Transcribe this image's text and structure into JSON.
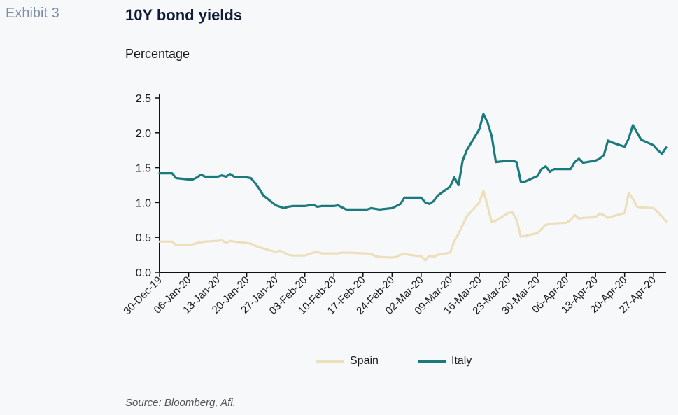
{
  "exhibit_label": "Exhibit 3",
  "colors": {
    "spain": "#ecdfbb",
    "italy": "#1b7a7e",
    "axis": "#111111"
  },
  "chart_data": {
    "type": "line",
    "title": "10Y bond yields",
    "ylabel": "Percentage",
    "source": "Source: Bloomberg, Afi.",
    "ylim": [
      0,
      2.5
    ],
    "yticks": [
      "0.0",
      "0.5",
      "1.0",
      "1.5",
      "2.0",
      "2.5"
    ],
    "xlim": [
      "2019-12-30",
      "2020-04-30"
    ],
    "xticks": [
      "30-Dec-19",
      "06-Jan-20",
      "13-Jan-20",
      "20-Jan-20",
      "27-Jan-20",
      "03-Feb-20",
      "10-Feb-20",
      "17-Feb-20",
      "24-Feb-20",
      "02-Mar-20",
      "09-Mar-20",
      "16-Mar-20",
      "23-Mar-20",
      "30-Mar-20",
      "06-Apr-20",
      "13-Apr-20",
      "20-Apr-20",
      "27-Apr-20"
    ],
    "grid": false,
    "legend_position": "bottom",
    "x": [
      "2019-12-30",
      "2020-01-01",
      "2020-01-02",
      "2020-01-03",
      "2020-01-06",
      "2020-01-07",
      "2020-01-08",
      "2020-01-09",
      "2020-01-10",
      "2020-01-13",
      "2020-01-14",
      "2020-01-15",
      "2020-01-16",
      "2020-01-17",
      "2020-01-20",
      "2020-01-21",
      "2020-01-22",
      "2020-01-23",
      "2020-01-24",
      "2020-01-27",
      "2020-01-28",
      "2020-01-29",
      "2020-01-30",
      "2020-01-31",
      "2020-02-03",
      "2020-02-04",
      "2020-02-05",
      "2020-02-06",
      "2020-02-07",
      "2020-02-10",
      "2020-02-11",
      "2020-02-12",
      "2020-02-13",
      "2020-02-14",
      "2020-02-17",
      "2020-02-18",
      "2020-02-19",
      "2020-02-20",
      "2020-02-21",
      "2020-02-24",
      "2020-02-25",
      "2020-02-26",
      "2020-02-27",
      "2020-02-28",
      "2020-03-02",
      "2020-03-03",
      "2020-03-04",
      "2020-03-05",
      "2020-03-06",
      "2020-03-09",
      "2020-03-10",
      "2020-03-11",
      "2020-03-12",
      "2020-03-13",
      "2020-03-16",
      "2020-03-17",
      "2020-03-18",
      "2020-03-19",
      "2020-03-20",
      "2020-03-23",
      "2020-03-24",
      "2020-03-25",
      "2020-03-26",
      "2020-03-27",
      "2020-03-30",
      "2020-03-31",
      "2020-04-01",
      "2020-04-02",
      "2020-04-03",
      "2020-04-06",
      "2020-04-07",
      "2020-04-08",
      "2020-04-09",
      "2020-04-10",
      "2020-04-13",
      "2020-04-14",
      "2020-04-15",
      "2020-04-16",
      "2020-04-17",
      "2020-04-20",
      "2020-04-21",
      "2020-04-22",
      "2020-04-23",
      "2020-04-24",
      "2020-04-27",
      "2020-04-28",
      "2020-04-29",
      "2020-04-30"
    ],
    "series": [
      {
        "name": "Spain",
        "color": "#ecdfbb",
        "values": [
          0.44,
          0.44,
          0.44,
          0.39,
          0.39,
          0.4,
          0.42,
          0.43,
          0.44,
          0.45,
          0.46,
          0.42,
          0.45,
          0.44,
          0.42,
          0.41,
          0.38,
          0.36,
          0.34,
          0.29,
          0.31,
          0.28,
          0.25,
          0.24,
          0.24,
          0.26,
          0.28,
          0.29,
          0.27,
          0.27,
          0.27,
          0.28,
          0.28,
          0.28,
          0.27,
          0.27,
          0.26,
          0.23,
          0.22,
          0.21,
          0.22,
          0.25,
          0.26,
          0.25,
          0.23,
          0.17,
          0.24,
          0.22,
          0.25,
          0.28,
          0.45,
          0.55,
          0.68,
          0.8,
          1.0,
          1.17,
          0.95,
          0.72,
          0.74,
          0.85,
          0.86,
          0.75,
          0.51,
          0.52,
          0.56,
          0.62,
          0.68,
          0.69,
          0.7,
          0.71,
          0.75,
          0.82,
          0.77,
          0.78,
          0.79,
          0.84,
          0.82,
          0.78,
          0.8,
          0.85,
          1.14,
          1.05,
          0.94,
          0.93,
          0.92,
          0.86,
          0.8,
          0.73
        ]
      },
      {
        "name": "Italy",
        "color": "#1b7a7e",
        "values": [
          1.42,
          1.42,
          1.42,
          1.35,
          1.33,
          1.33,
          1.36,
          1.4,
          1.37,
          1.37,
          1.39,
          1.37,
          1.41,
          1.37,
          1.36,
          1.35,
          1.28,
          1.2,
          1.1,
          0.96,
          0.94,
          0.92,
          0.94,
          0.95,
          0.95,
          0.96,
          0.97,
          0.94,
          0.95,
          0.95,
          0.96,
          0.93,
          0.9,
          0.9,
          0.9,
          0.9,
          0.92,
          0.91,
          0.9,
          0.92,
          0.95,
          0.98,
          1.07,
          1.07,
          1.07,
          1.0,
          0.98,
          1.02,
          1.1,
          1.23,
          1.36,
          1.25,
          1.6,
          1.75,
          2.05,
          2.27,
          2.15,
          1.95,
          1.58,
          1.6,
          1.6,
          1.58,
          1.3,
          1.3,
          1.38,
          1.48,
          1.52,
          1.44,
          1.48,
          1.48,
          1.48,
          1.58,
          1.63,
          1.57,
          1.6,
          1.63,
          1.68,
          1.89,
          1.86,
          1.8,
          1.92,
          2.11,
          2.0,
          1.9,
          1.82,
          1.75,
          1.7,
          1.79
        ]
      }
    ]
  }
}
